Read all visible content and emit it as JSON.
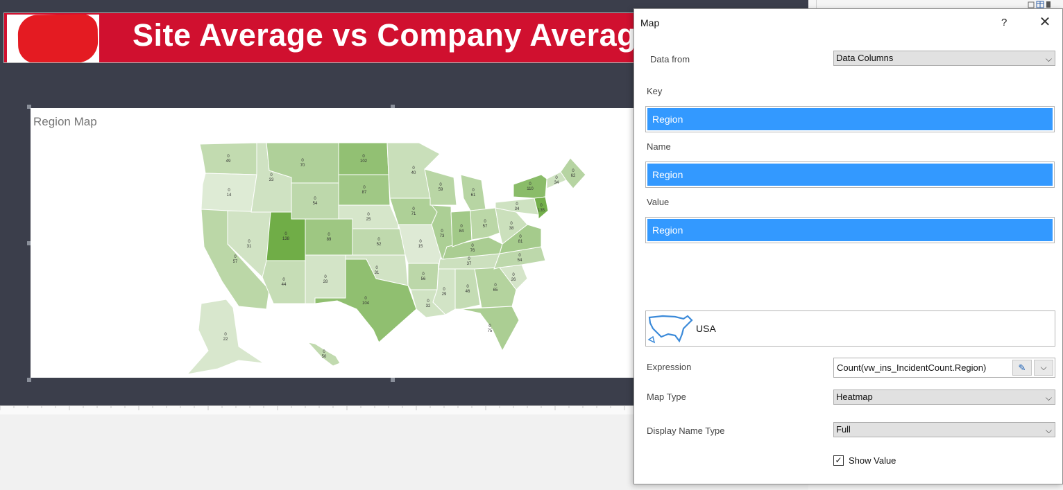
{
  "report": {
    "banner_title": "Site Average vs Company Average",
    "map_title": "Region Map",
    "heat_color": "#70ad47"
  },
  "states": [
    {
      "code": "WA",
      "value": "0\n49"
    },
    {
      "code": "OR",
      "value": "0\n14"
    },
    {
      "code": "CA",
      "value": "0\n57"
    },
    {
      "code": "NV",
      "value": "0\n31"
    },
    {
      "code": "ID",
      "value": "0\n33"
    },
    {
      "code": "MT",
      "value": "0\n70"
    },
    {
      "code": "WY",
      "value": "0\n54"
    },
    {
      "code": "UT",
      "value": "0\n138"
    },
    {
      "code": "AZ",
      "value": "0\n44"
    },
    {
      "code": "CO",
      "value": "0\n89"
    },
    {
      "code": "NM",
      "value": "0\n28"
    },
    {
      "code": "ND",
      "value": "0\n102"
    },
    {
      "code": "SD",
      "value": "0\n87"
    },
    {
      "code": "NE",
      "value": "0\n25"
    },
    {
      "code": "KS",
      "value": "0\n52"
    },
    {
      "code": "OK",
      "value": "0\n31"
    },
    {
      "code": "TX",
      "value": "0\n104"
    },
    {
      "code": "MN",
      "value": "0\n40"
    },
    {
      "code": "IA",
      "value": "0\n71"
    },
    {
      "code": "MO",
      "value": "0\n15"
    },
    {
      "code": "AR",
      "value": "0\n56"
    },
    {
      "code": "LA",
      "value": "0\n32"
    },
    {
      "code": "WI",
      "value": "0\n59"
    },
    {
      "code": "IL",
      "value": "0\n73"
    },
    {
      "code": "MS",
      "value": "0\n29"
    },
    {
      "code": "AL",
      "value": "0\n46"
    },
    {
      "code": "TN",
      "value": "0\n37"
    },
    {
      "code": "KY",
      "value": "0\n76"
    },
    {
      "code": "IN",
      "value": "0\n84"
    },
    {
      "code": "MI",
      "value": "0\n61"
    },
    {
      "code": "OH",
      "value": "0\n57"
    },
    {
      "code": "GA",
      "value": "0\n65"
    },
    {
      "code": "FL",
      "value": "0\n75"
    },
    {
      "code": "SC",
      "value": "0\n26"
    },
    {
      "code": "NC",
      "value": "0\n54"
    },
    {
      "code": "VA",
      "value": "0\n81"
    },
    {
      "code": "WV",
      "value": "0\n38"
    },
    {
      "code": "PA",
      "value": "0\n34"
    },
    {
      "code": "NY",
      "value": "0\n110"
    },
    {
      "code": "NJ",
      "value": "0\n135"
    },
    {
      "code": "MA",
      "value": "0\n34"
    },
    {
      "code": "ME",
      "value": "0\n62"
    },
    {
      "code": "AK",
      "value": "0\n22"
    },
    {
      "code": "HI",
      "value": "0\n50"
    }
  ],
  "dialog": {
    "title": "Map",
    "help": "?",
    "close": "✕",
    "data_from_label": "Data from",
    "data_from_value": "Data Columns",
    "key_label": "Key",
    "key_value": "Region",
    "name_label": "Name",
    "name_value": "Region",
    "value_label": "Value",
    "value_value": "Region",
    "map_name": "USA",
    "expression_label": "Expression",
    "expression_value": "Count(vw_ins_IncidentCount.Region)",
    "map_type_label": "Map Type",
    "map_type_value": "Heatmap",
    "display_name_type_label": "Display Name Type",
    "display_name_type_value": "Full",
    "show_value_label": "Show Value",
    "show_value_checked": true
  },
  "icons": {
    "edit": "pencil-icon",
    "dropdown": "chevron-down-icon",
    "close": "close-icon",
    "help": "help-icon",
    "map_thumb": "usa-outline-icon"
  }
}
